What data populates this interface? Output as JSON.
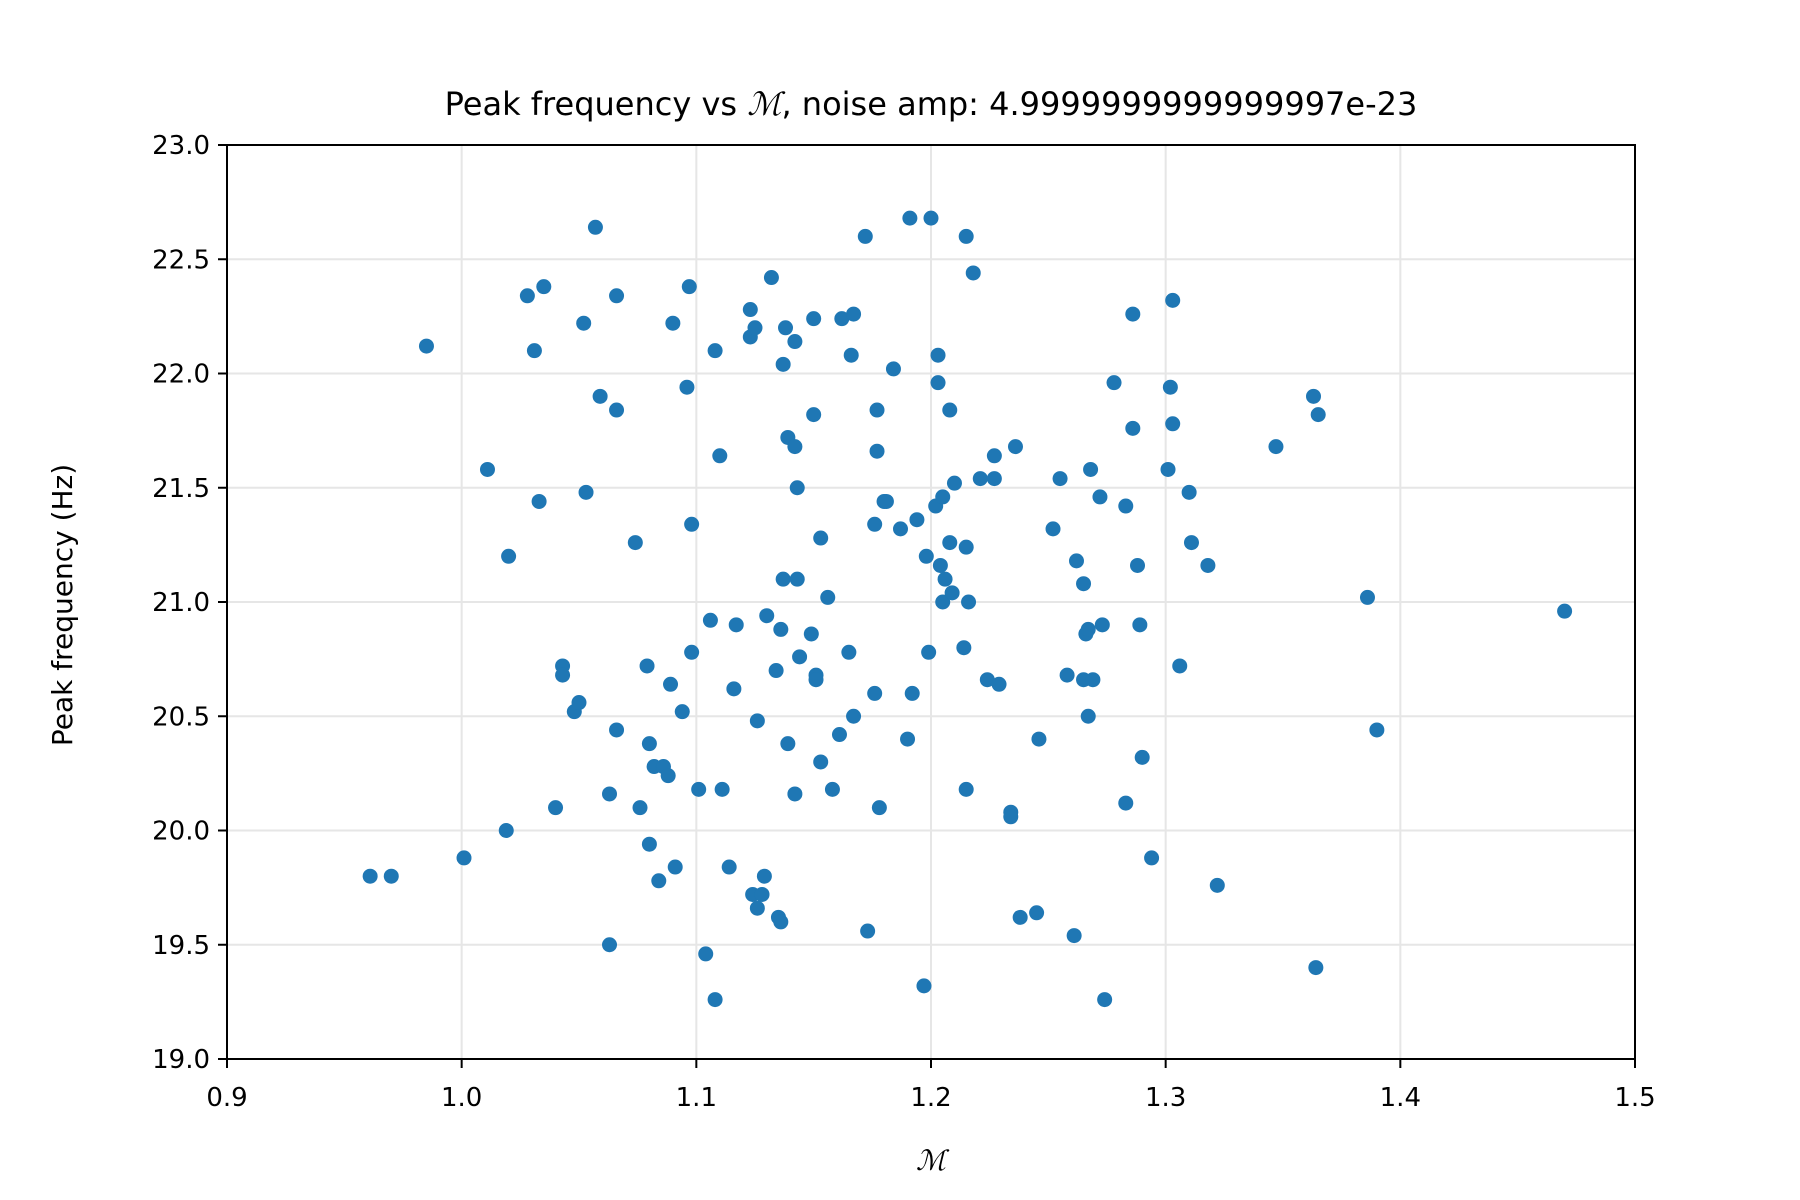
{
  "chart_data": {
    "type": "scatter",
    "title_prefix": "Peak frequency vs ",
    "title_symbol": "ℳ",
    "title_suffix": ", noise amp: 4.9999999999999997e-23",
    "title": "Peak frequency vs ℳ, noise amp: 4.9999999999999997e-23",
    "xlabel": "ℳ",
    "ylabel": "Peak frequency (Hz)",
    "xlim": [
      0.9,
      1.5
    ],
    "ylim": [
      19.0,
      23.0
    ],
    "xticks": [
      0.9,
      1.0,
      1.1,
      1.2,
      1.3,
      1.4,
      1.5
    ],
    "yticks": [
      19.0,
      19.5,
      20.0,
      20.5,
      21.0,
      21.5,
      22.0,
      22.5,
      23.0
    ],
    "xtick_labels": [
      "0.9",
      "1.0",
      "1.1",
      "1.2",
      "1.3",
      "1.4",
      "1.5"
    ],
    "ytick_labels": [
      "19.0",
      "19.5",
      "20.0",
      "20.5",
      "21.0",
      "21.5",
      "22.0",
      "22.5",
      "23.0"
    ],
    "grid": true,
    "marker_color": "#1f77b4",
    "grid_color": "#e6e6e6",
    "points": [
      [
        0.961,
        19.8
      ],
      [
        0.97,
        19.8
      ],
      [
        0.985,
        22.12
      ],
      [
        1.001,
        19.88
      ],
      [
        1.011,
        21.58
      ],
      [
        1.019,
        20.0
      ],
      [
        1.02,
        21.2
      ],
      [
        1.028,
        22.34
      ],
      [
        1.031,
        22.1
      ],
      [
        1.033,
        21.44
      ],
      [
        1.035,
        22.38
      ],
      [
        1.04,
        20.1
      ],
      [
        1.043,
        20.72
      ],
      [
        1.043,
        20.68
      ],
      [
        1.048,
        20.52
      ],
      [
        1.05,
        20.56
      ],
      [
        1.052,
        22.22
      ],
      [
        1.053,
        21.48
      ],
      [
        1.057,
        22.64
      ],
      [
        1.059,
        21.9
      ],
      [
        1.063,
        20.16
      ],
      [
        1.063,
        19.5
      ],
      [
        1.066,
        22.34
      ],
      [
        1.066,
        21.84
      ],
      [
        1.066,
        20.44
      ],
      [
        1.074,
        21.26
      ],
      [
        1.076,
        20.1
      ],
      [
        1.079,
        20.72
      ],
      [
        1.08,
        20.38
      ],
      [
        1.08,
        19.94
      ],
      [
        1.082,
        20.28
      ],
      [
        1.084,
        19.78
      ],
      [
        1.086,
        20.28
      ],
      [
        1.088,
        20.24
      ],
      [
        1.089,
        20.64
      ],
      [
        1.09,
        22.22
      ],
      [
        1.091,
        19.84
      ],
      [
        1.094,
        20.52
      ],
      [
        1.096,
        21.94
      ],
      [
        1.097,
        22.38
      ],
      [
        1.098,
        21.34
      ],
      [
        1.098,
        20.78
      ],
      [
        1.101,
        20.18
      ],
      [
        1.104,
        19.46
      ],
      [
        1.106,
        20.92
      ],
      [
        1.108,
        22.1
      ],
      [
        1.108,
        19.26
      ],
      [
        1.11,
        21.64
      ],
      [
        1.111,
        20.18
      ],
      [
        1.114,
        19.84
      ],
      [
        1.116,
        20.62
      ],
      [
        1.117,
        20.9
      ],
      [
        1.123,
        22.28
      ],
      [
        1.123,
        22.16
      ],
      [
        1.124,
        19.72
      ],
      [
        1.125,
        22.2
      ],
      [
        1.126,
        20.48
      ],
      [
        1.126,
        19.66
      ],
      [
        1.128,
        19.72
      ],
      [
        1.129,
        19.8
      ],
      [
        1.13,
        20.94
      ],
      [
        1.132,
        22.42
      ],
      [
        1.134,
        20.7
      ],
      [
        1.135,
        19.62
      ],
      [
        1.136,
        20.88
      ],
      [
        1.136,
        19.6
      ],
      [
        1.137,
        22.04
      ],
      [
        1.137,
        21.1
      ],
      [
        1.138,
        22.2
      ],
      [
        1.139,
        21.72
      ],
      [
        1.139,
        20.38
      ],
      [
        1.142,
        21.68
      ],
      [
        1.142,
        22.14
      ],
      [
        1.142,
        20.16
      ],
      [
        1.143,
        21.1
      ],
      [
        1.143,
        21.5
      ],
      [
        1.144,
        20.76
      ],
      [
        1.149,
        20.86
      ],
      [
        1.15,
        21.82
      ],
      [
        1.15,
        22.24
      ],
      [
        1.151,
        20.68
      ],
      [
        1.151,
        20.66
      ],
      [
        1.153,
        21.28
      ],
      [
        1.153,
        20.3
      ],
      [
        1.156,
        21.02
      ],
      [
        1.158,
        20.18
      ],
      [
        1.161,
        20.42
      ],
      [
        1.162,
        22.24
      ],
      [
        1.165,
        20.78
      ],
      [
        1.166,
        22.08
      ],
      [
        1.167,
        22.26
      ],
      [
        1.167,
        20.5
      ],
      [
        1.172,
        22.6
      ],
      [
        1.173,
        19.56
      ],
      [
        1.176,
        21.34
      ],
      [
        1.176,
        20.6
      ],
      [
        1.177,
        21.84
      ],
      [
        1.177,
        21.66
      ],
      [
        1.178,
        20.1
      ],
      [
        1.18,
        21.44
      ],
      [
        1.181,
        21.44
      ],
      [
        1.184,
        22.02
      ],
      [
        1.187,
        21.32
      ],
      [
        1.19,
        20.4
      ],
      [
        1.191,
        22.68
      ],
      [
        1.192,
        20.6
      ],
      [
        1.194,
        21.36
      ],
      [
        1.197,
        19.32
      ],
      [
        1.198,
        21.2
      ],
      [
        1.199,
        20.78
      ],
      [
        1.2,
        22.68
      ],
      [
        1.202,
        21.42
      ],
      [
        1.203,
        22.08
      ],
      [
        1.203,
        21.96
      ],
      [
        1.204,
        21.16
      ],
      [
        1.205,
        21.46
      ],
      [
        1.205,
        21.0
      ],
      [
        1.206,
        21.1
      ],
      [
        1.208,
        21.84
      ],
      [
        1.208,
        21.26
      ],
      [
        1.209,
        21.04
      ],
      [
        1.21,
        21.52
      ],
      [
        1.214,
        20.8
      ],
      [
        1.215,
        22.6
      ],
      [
        1.215,
        21.24
      ],
      [
        1.215,
        20.18
      ],
      [
        1.216,
        21.0
      ],
      [
        1.218,
        22.44
      ],
      [
        1.221,
        21.54
      ],
      [
        1.224,
        20.66
      ],
      [
        1.227,
        21.64
      ],
      [
        1.227,
        21.54
      ],
      [
        1.229,
        20.64
      ],
      [
        1.234,
        20.08
      ],
      [
        1.234,
        20.06
      ],
      [
        1.236,
        21.68
      ],
      [
        1.238,
        19.62
      ],
      [
        1.245,
        19.64
      ],
      [
        1.246,
        20.4
      ],
      [
        1.252,
        21.32
      ],
      [
        1.255,
        21.54
      ],
      [
        1.258,
        20.68
      ],
      [
        1.261,
        19.54
      ],
      [
        1.262,
        21.18
      ],
      [
        1.265,
        21.08
      ],
      [
        1.265,
        20.66
      ],
      [
        1.266,
        20.86
      ],
      [
        1.267,
        20.88
      ],
      [
        1.267,
        20.5
      ],
      [
        1.268,
        21.58
      ],
      [
        1.269,
        20.66
      ],
      [
        1.272,
        21.46
      ],
      [
        1.273,
        20.9
      ],
      [
        1.274,
        19.26
      ],
      [
        1.278,
        21.96
      ],
      [
        1.283,
        21.42
      ],
      [
        1.283,
        20.12
      ],
      [
        1.286,
        22.26
      ],
      [
        1.286,
        21.76
      ],
      [
        1.288,
        21.16
      ],
      [
        1.289,
        20.9
      ],
      [
        1.29,
        20.32
      ],
      [
        1.294,
        19.88
      ],
      [
        1.301,
        21.58
      ],
      [
        1.302,
        21.94
      ],
      [
        1.303,
        22.32
      ],
      [
        1.303,
        21.78
      ],
      [
        1.306,
        20.72
      ],
      [
        1.31,
        21.48
      ],
      [
        1.311,
        21.26
      ],
      [
        1.318,
        21.16
      ],
      [
        1.322,
        19.76
      ],
      [
        1.347,
        21.68
      ],
      [
        1.363,
        21.9
      ],
      [
        1.364,
        19.4
      ],
      [
        1.365,
        21.82
      ],
      [
        1.386,
        21.02
      ],
      [
        1.39,
        20.44
      ],
      [
        1.47,
        20.96
      ]
    ]
  }
}
